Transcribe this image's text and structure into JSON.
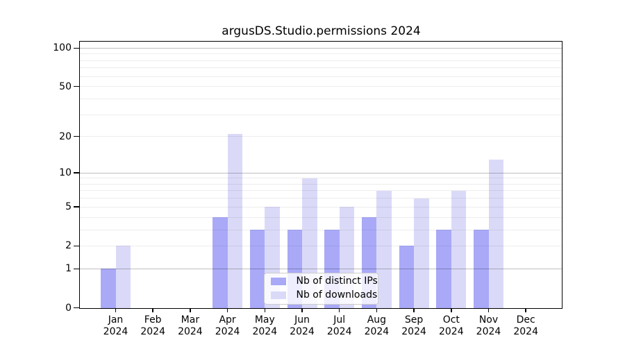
{
  "chart_data": {
    "type": "bar",
    "title": "argusDS.Studio.permissions 2024",
    "categories": [
      "Jan",
      "Feb",
      "Mar",
      "Apr",
      "May",
      "Jun",
      "Jul",
      "Aug",
      "Sep",
      "Oct",
      "Nov",
      "Dec"
    ],
    "category_year": "2024",
    "series": [
      {
        "name": "Nb of distinct IPs",
        "color": "#a9a9f8",
        "values": [
          1,
          0,
          0,
          4,
          3,
          3,
          3,
          4,
          2,
          3,
          3,
          0
        ]
      },
      {
        "name": "Nb of downloads",
        "color": "#dadaf8",
        "values": [
          2,
          0,
          0,
          21,
          5,
          9,
          5,
          7,
          6,
          7,
          13,
          0
        ]
      }
    ],
    "yscale": "log1p",
    "ylim": [
      0,
      113
    ],
    "ytick_labels": [
      0,
      1,
      2,
      5,
      10,
      20,
      50,
      100
    ],
    "major_gridlines": [
      1,
      10,
      100
    ],
    "minor_gridlines": [
      2,
      3,
      4,
      5,
      6,
      7,
      8,
      9,
      20,
      30,
      40,
      50,
      60,
      70,
      80,
      90
    ],
    "grid": true,
    "legend_position": "lower center"
  }
}
